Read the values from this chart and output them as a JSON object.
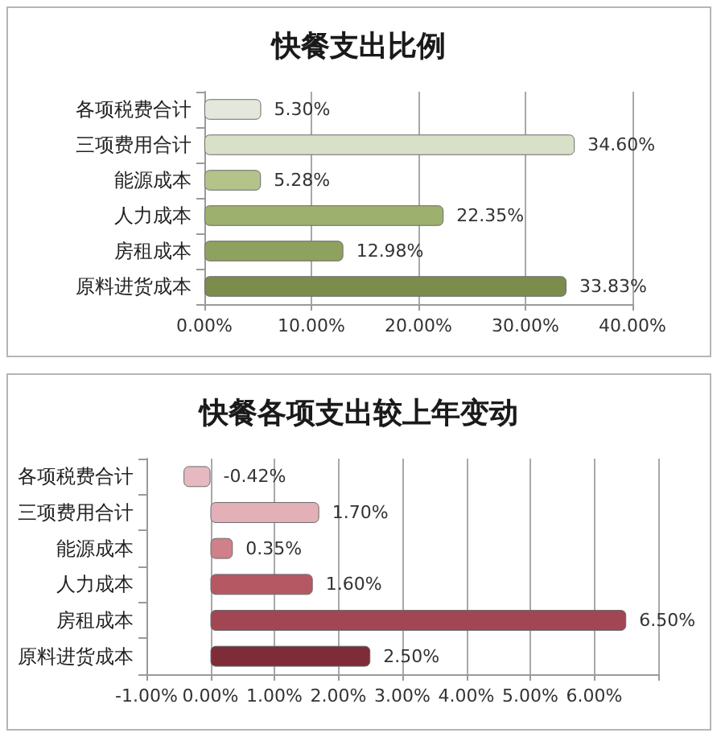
{
  "chart_data": [
    {
      "type": "bar",
      "title": "快餐支出比例",
      "orientation": "horizontal",
      "categories": [
        "各项税费合计",
        "三项费用合计",
        "能源成本",
        "人力成本",
        "房租成本",
        "原料进货成本"
      ],
      "values": [
        5.3,
        34.6,
        5.28,
        22.35,
        12.98,
        33.83
      ],
      "colors": [
        "#e4e8dc",
        "#d9e0c8",
        "#b3c38a",
        "#9db06e",
        "#8fa15f",
        "#7b8c4b"
      ],
      "value_labels": [
        "5.30%",
        "34.60%",
        "5.28%",
        "22.35%",
        "12.98%",
        "33.83%"
      ],
      "xlim": [
        0,
        40
      ],
      "xticks": [
        {
          "value": 0,
          "label": "0.00%"
        },
        {
          "value": 10,
          "label": "10.00%"
        },
        {
          "value": 20,
          "label": "20.00%"
        },
        {
          "value": 30,
          "label": "30.00%"
        },
        {
          "value": 40,
          "label": "40.00%"
        }
      ],
      "grid": "x"
    },
    {
      "type": "bar",
      "title": "快餐各项支出较上年变动",
      "orientation": "horizontal",
      "categories": [
        "各项税费合计",
        "三项费用合计",
        "能源成本",
        "人力成本",
        "房租成本",
        "原料进货成本"
      ],
      "values": [
        -0.42,
        1.7,
        0.35,
        1.6,
        6.5,
        2.5
      ],
      "colors": [
        "#e6b9c0",
        "#e3b0b8",
        "#cf8088",
        "#b55863",
        "#a14652",
        "#7e2c37"
      ],
      "value_labels": [
        "-0.42%",
        "1.70%",
        "0.35%",
        "1.60%",
        "6.50%",
        "2.50%"
      ],
      "xlim": [
        -1,
        7
      ],
      "xticks": [
        {
          "value": -1,
          "label": "-1.00%"
        },
        {
          "value": 0,
          "label": "0.00%"
        },
        {
          "value": 1,
          "label": "1.00%"
        },
        {
          "value": 2,
          "label": "2.00%"
        },
        {
          "value": 3,
          "label": "3.00%"
        },
        {
          "value": 4,
          "label": "4.00%"
        },
        {
          "value": 5,
          "label": "5.00%"
        },
        {
          "value": 6,
          "label": "6.00%"
        },
        {
          "value": 7,
          "label": null
        }
      ],
      "grid": "x"
    }
  ]
}
